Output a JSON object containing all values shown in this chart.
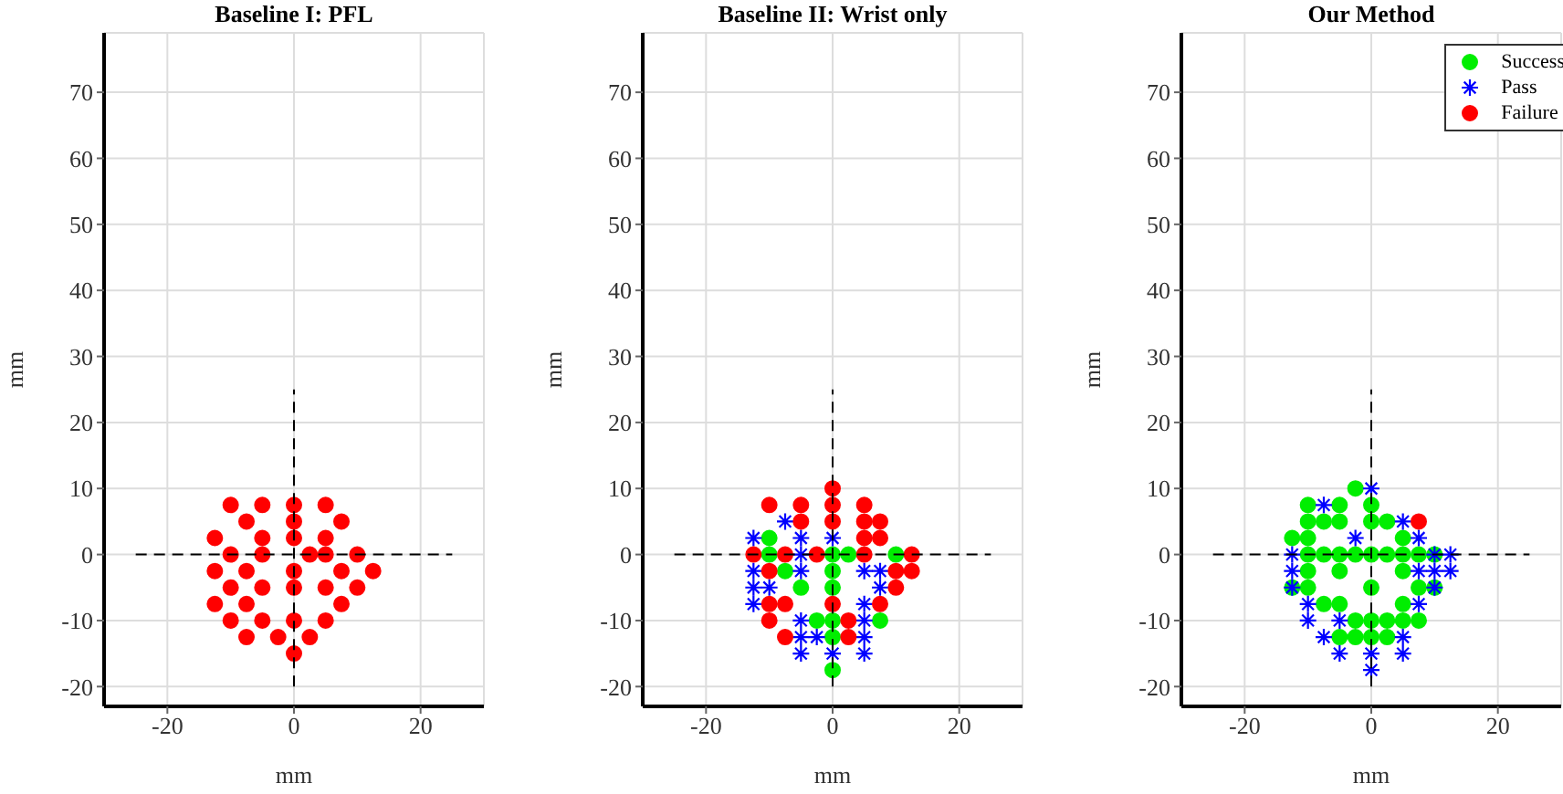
{
  "chart_data": [
    {
      "type": "scatter",
      "title": "Baseline I: PFL",
      "xlabel": "mm",
      "ylabel": "mm",
      "xlim": [
        -30,
        30
      ],
      "ylim": [
        -23,
        79
      ],
      "xticks": [
        -20,
        0,
        20
      ],
      "yticks": [
        -20,
        -10,
        0,
        10,
        20,
        30,
        40,
        50,
        60,
        70
      ],
      "grid": true,
      "legend": false,
      "series": [
        {
          "color": "#ff0000",
          "marker": "circle",
          "x": [
            -10,
            -5,
            0,
            5,
            -7.5,
            0,
            7.5,
            -12.5,
            -5,
            0,
            5,
            -10,
            -5,
            2.5,
            5,
            10,
            -12.5,
            -7.5,
            0,
            7.5,
            12.5,
            -10,
            -5,
            0,
            5,
            10,
            -12.5,
            -7.5,
            7.5,
            -10,
            -5,
            0,
            5,
            -7.5,
            -2.5,
            2.5,
            0
          ],
          "values": [
            7.5,
            7.5,
            7.5,
            7.5,
            5,
            5,
            5,
            2.5,
            2.5,
            2.5,
            2.5,
            0,
            0,
            0,
            0,
            0,
            -2.5,
            -2.5,
            -2.5,
            -2.5,
            -2.5,
            -5,
            -5,
            -5,
            -5,
            -5,
            -7.5,
            -7.5,
            -7.5,
            -10,
            -10,
            -10,
            -10,
            -12.5,
            -12.5,
            -12.5,
            -15
          ]
        },
        {
          "type": "line",
          "color": "#000000",
          "line_style": "dashed",
          "marker": "none",
          "x": [
            -25,
            25
          ],
          "values": [
            0,
            0
          ]
        },
        {
          "type": "line",
          "color": "#000000",
          "line_style": "dashed",
          "marker": "none",
          "x": [
            0,
            0
          ],
          "values": [
            -20,
            25
          ]
        }
      ]
    },
    {
      "type": "scatter",
      "title": "Baseline II: Wrist only",
      "xlabel": "mm",
      "ylabel": "mm",
      "xlim": [
        -30,
        30
      ],
      "ylim": [
        -23,
        79
      ],
      "xticks": [
        -20,
        0,
        20
      ],
      "yticks": [
        -20,
        -10,
        0,
        10,
        20,
        30,
        40,
        50,
        60,
        70
      ],
      "grid": true,
      "legend": false,
      "series": [
        {
          "color": "#00ee00",
          "marker": "circle",
          "x": [
            -10,
            -10,
            0,
            2.5,
            10,
            -7.5,
            0,
            -5,
            0,
            -2.5,
            0,
            7.5,
            0,
            0
          ],
          "values": [
            2.5,
            0,
            0,
            0,
            0,
            -2.5,
            -2.5,
            -5,
            -5,
            -10,
            -10,
            -10,
            -12.5,
            -17.5
          ]
        },
        {
          "color": "#0000ff",
          "marker": "cross",
          "x": [
            -7.5,
            -12.5,
            -5,
            0,
            -5,
            -12.5,
            -5,
            5,
            7.5,
            -12.5,
            -10,
            7.5,
            -12.5,
            5,
            -5,
            5,
            -5,
            -2.5,
            5,
            -5,
            0,
            5
          ],
          "values": [
            5,
            2.5,
            2.5,
            2.5,
            0,
            -2.5,
            -2.5,
            -2.5,
            -2.5,
            -5,
            -5,
            -5,
            -7.5,
            -7.5,
            -10,
            -10,
            -12.5,
            -12.5,
            -12.5,
            -15,
            -15,
            -15
          ]
        },
        {
          "color": "#ff0000",
          "marker": "circle",
          "x": [
            0,
            -10,
            -5,
            0,
            5,
            -5,
            0,
            5,
            7.5,
            5,
            7.5,
            -12.5,
            -7.5,
            -2.5,
            5,
            12.5,
            -10,
            10,
            12.5,
            10,
            -10,
            -7.5,
            0,
            7.5,
            -10,
            2.5,
            -7.5,
            2.5
          ],
          "values": [
            10,
            7.5,
            7.5,
            7.5,
            7.5,
            5,
            5,
            5,
            5,
            2.5,
            2.5,
            0,
            0,
            0,
            0,
            0,
            -2.5,
            -2.5,
            -2.5,
            -5,
            -7.5,
            -7.5,
            -7.5,
            -7.5,
            -10,
            -10,
            -12.5,
            -12.5
          ]
        },
        {
          "type": "line",
          "color": "#000000",
          "line_style": "dashed",
          "marker": "none",
          "x": [
            -25,
            25
          ],
          "values": [
            0,
            0
          ]
        },
        {
          "type": "line",
          "color": "#000000",
          "line_style": "dashed",
          "marker": "none",
          "x": [
            0,
            0
          ],
          "values": [
            -20,
            25
          ]
        }
      ]
    },
    {
      "type": "scatter",
      "title": "Our Method",
      "xlabel": "mm",
      "ylabel": "mm",
      "xlim": [
        -30,
        30
      ],
      "ylim": [
        -23,
        79
      ],
      "xticks": [
        -20,
        0,
        20
      ],
      "yticks": [
        -20,
        -10,
        0,
        10,
        20,
        30,
        40,
        50,
        60,
        70
      ],
      "grid": true,
      "legend": "top right",
      "series": [
        {
          "name": "Success",
          "color": "#00ee00",
          "marker": "circle",
          "x": [
            -2.5,
            -10,
            -5,
            0,
            -10,
            -7.5,
            -5,
            0,
            2.5,
            -12.5,
            -10,
            5,
            -10,
            -7.5,
            -5,
            -2.5,
            0,
            2.5,
            5,
            7.5,
            10,
            -10,
            -5,
            5,
            -12.5,
            -10,
            0,
            7.5,
            10,
            -7.5,
            -5,
            5,
            -2.5,
            0,
            2.5,
            5,
            7.5,
            -5,
            -2.5,
            0,
            2.5
          ],
          "values": [
            10,
            7.5,
            7.5,
            7.5,
            5,
            5,
            5,
            5,
            5,
            2.5,
            2.5,
            2.5,
            0,
            0,
            0,
            0,
            0,
            0,
            0,
            0,
            0,
            -2.5,
            -2.5,
            -2.5,
            -5,
            -5,
            -5,
            -5,
            -5,
            -7.5,
            -7.5,
            -7.5,
            -10,
            -10,
            -10,
            -10,
            -10,
            -12.5,
            -12.5,
            -12.5,
            -12.5
          ]
        },
        {
          "name": "Pass",
          "color": "#0000ff",
          "marker": "cross",
          "x": [
            0,
            -7.5,
            5,
            -2.5,
            7.5,
            -12.5,
            10,
            12.5,
            -12.5,
            7.5,
            10,
            12.5,
            -12.5,
            10,
            -10,
            7.5,
            -10,
            -5,
            -7.5,
            5,
            -5,
            0,
            5,
            0
          ],
          "values": [
            10,
            7.5,
            5,
            2.5,
            2.5,
            0,
            0,
            0,
            -2.5,
            -2.5,
            -2.5,
            -2.5,
            -5,
            -5,
            -7.5,
            -7.5,
            -10,
            -10,
            -12.5,
            -12.5,
            -15,
            -15,
            -15,
            -17.5
          ]
        },
        {
          "name": "Failure",
          "color": "#ff0000",
          "marker": "circle",
          "x": [
            7.5
          ],
          "values": [
            5
          ]
        },
        {
          "type": "line",
          "color": "#000000",
          "line_style": "dashed",
          "marker": "none",
          "x": [
            -25,
            25
          ],
          "values": [
            0,
            0
          ]
        },
        {
          "type": "line",
          "color": "#000000",
          "line_style": "dashed",
          "marker": "none",
          "x": [
            0,
            0
          ],
          "values": [
            -20,
            25
          ]
        }
      ]
    }
  ]
}
